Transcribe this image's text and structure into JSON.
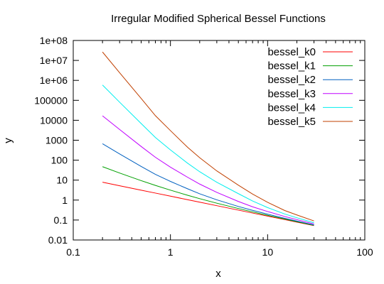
{
  "chart_data": {
    "type": "line",
    "title": "Irregular Modified Spherical Bessel Functions",
    "xlabel": "x",
    "ylabel": "y",
    "x_scale": "log",
    "y_scale": "log",
    "xlim": [
      0.1,
      100
    ],
    "ylim": [
      0.01,
      100000000
    ],
    "grid": false,
    "legend_position": "top-right",
    "x_ticks": [
      {
        "value": 0.1,
        "label": "0.1"
      },
      {
        "value": 1,
        "label": "1"
      },
      {
        "value": 10,
        "label": "10"
      },
      {
        "value": 100,
        "label": "100"
      }
    ],
    "y_ticks": [
      {
        "value": 0.01,
        "label": "0.01"
      },
      {
        "value": 0.1,
        "label": "0.1"
      },
      {
        "value": 1,
        "label": "1"
      },
      {
        "value": 10,
        "label": "10"
      },
      {
        "value": 100,
        "label": "100"
      },
      {
        "value": 1000,
        "label": "1000"
      },
      {
        "value": 10000,
        "label": "10000"
      },
      {
        "value": 100000,
        "label": "100000"
      },
      {
        "value": 1000000,
        "label": "1e+06"
      },
      {
        "value": 10000000,
        "label": "1e+07"
      },
      {
        "value": 100000000,
        "label": "1e+08"
      }
    ],
    "x": [
      0.2,
      0.3,
      0.5,
      0.7,
      1,
      1.5,
      2,
      3,
      5,
      7,
      10,
      15,
      20,
      30
    ],
    "series": [
      {
        "name": "bessel_k0",
        "color": "#ff0000",
        "values": [
          7.854,
          5.236,
          3.142,
          2.244,
          1.571,
          1.047,
          0.785,
          0.524,
          0.314,
          0.224,
          0.157,
          0.105,
          0.0785,
          0.0524
        ]
      },
      {
        "name": "bessel_k1",
        "color": "#00a000",
        "values": [
          47.12,
          22.69,
          9.425,
          5.45,
          3.142,
          1.745,
          1.178,
          0.698,
          0.377,
          0.256,
          0.173,
          0.112,
          0.0825,
          0.0541
        ]
      },
      {
        "name": "bessel_k2",
        "color": "#0060c0",
        "values": [
          667.6,
          205.8,
          48.7,
          19.47,
          8.639,
          3.683,
          2.062,
          1.029,
          0.478,
          0.305,
          0.197,
          0.122,
          0.0888,
          0.0567
        ]
      },
      {
        "name": "bessel_k3",
        "color": "#c000ff",
        "values": [
          16737,
          3451,
          486.3,
          139.9,
          44.76,
          13.96,
          6.342,
          2.438,
          0.852,
          0.462,
          0.267,
          0.15,
          0.105,
          0.0633
        ]
      },
      {
        "name": "bessel_k4",
        "color": "#00eeee",
        "values": [
          586475,
          80710,
          6856,
          1370,
          326.7,
          70.8,
          26.4,
          7.8,
          2.1,
          0.9,
          0.42,
          0.2,
          0.13,
          0.073
        ]
      },
      {
        "name": "bessel_k5",
        "color": "#c04000",
        "values": [
          26408000,
          2407000,
          123900,
          17040,
          3040,
          444,
          133,
          29,
          5.6,
          2.0,
          0.77,
          0.3,
          0.18,
          0.09
        ]
      }
    ]
  }
}
